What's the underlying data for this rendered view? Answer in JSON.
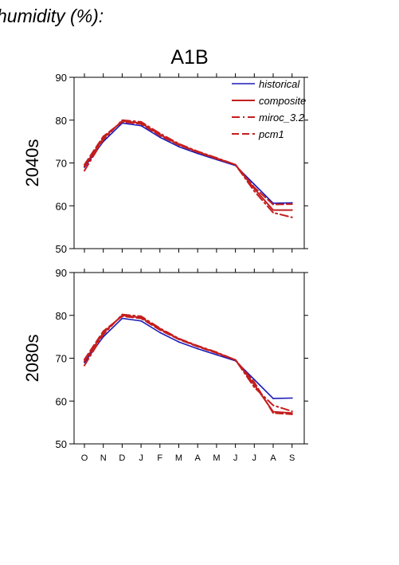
{
  "header": {
    "title": "humidity (%):",
    "scenario": "A1B"
  },
  "colors": {
    "historical": "#1a1ab8",
    "model": "#c41e1e",
    "axis": "#000000",
    "background": "#ffffff"
  },
  "chart_data": [
    {
      "type": "line",
      "panel_label": "2040s",
      "xlabel": "",
      "ylabel": "",
      "ylim": [
        50,
        90
      ],
      "yticks": [
        50,
        60,
        70,
        80,
        90
      ],
      "grid": false,
      "legend_placement": "top-right",
      "categories": [
        "O",
        "N",
        "D",
        "J",
        "F",
        "M",
        "A",
        "M",
        "J",
        "J",
        "A",
        "S"
      ],
      "series": [
        {
          "name": "historical",
          "style": "solid",
          "color": "#1a1ab8",
          "values": [
            69.0,
            75.0,
            79.3,
            78.7,
            76.0,
            73.8,
            72.2,
            70.8,
            69.4,
            65.0,
            60.6,
            60.7
          ]
        },
        {
          "name": "composite",
          "style": "solid",
          "color": "#c41e1e",
          "values": [
            69.2,
            75.8,
            79.8,
            79.3,
            76.6,
            74.3,
            72.6,
            71.1,
            69.6,
            64.0,
            59.0,
            59.0
          ]
        },
        {
          "name": "miroc_3.2",
          "style": "dashdot",
          "color": "#c41e1e",
          "values": [
            68.2,
            75.4,
            80.0,
            79.6,
            76.9,
            74.5,
            72.7,
            71.2,
            69.6,
            63.4,
            58.4,
            57.3
          ]
        },
        {
          "name": "pcm1",
          "style": "dashed",
          "color": "#c41e1e",
          "values": [
            69.6,
            76.2,
            79.6,
            79.1,
            76.4,
            74.2,
            72.5,
            71.0,
            69.6,
            64.3,
            60.3,
            60.4
          ]
        }
      ]
    },
    {
      "type": "line",
      "panel_label": "2080s",
      "xlabel": "",
      "ylabel": "",
      "ylim": [
        50,
        90
      ],
      "yticks": [
        50,
        60,
        70,
        80,
        90
      ],
      "grid": false,
      "categories": [
        "O",
        "N",
        "D",
        "J",
        "F",
        "M",
        "A",
        "M",
        "J",
        "J",
        "A",
        "S"
      ],
      "series": [
        {
          "name": "historical",
          "style": "solid",
          "color": "#1a1ab8",
          "values": [
            69.0,
            75.0,
            79.3,
            78.7,
            76.0,
            73.8,
            72.2,
            70.8,
            69.4,
            65.0,
            60.6,
            60.7
          ]
        },
        {
          "name": "composite",
          "style": "solid",
          "color": "#c41e1e",
          "values": [
            69.3,
            75.9,
            80.0,
            79.5,
            76.8,
            74.5,
            72.8,
            71.3,
            69.6,
            63.8,
            57.5,
            57.2
          ]
        },
        {
          "name": "miroc_3.2",
          "style": "dashdot",
          "color": "#c41e1e",
          "values": [
            68.3,
            75.5,
            80.2,
            79.8,
            77.0,
            74.6,
            72.9,
            71.4,
            69.6,
            63.2,
            59.0,
            57.6
          ]
        },
        {
          "name": "pcm1",
          "style": "dashed",
          "color": "#c41e1e",
          "values": [
            69.7,
            76.3,
            79.8,
            79.3,
            76.6,
            74.4,
            72.7,
            71.2,
            69.6,
            64.4,
            57.2,
            56.9
          ]
        }
      ]
    }
  ]
}
